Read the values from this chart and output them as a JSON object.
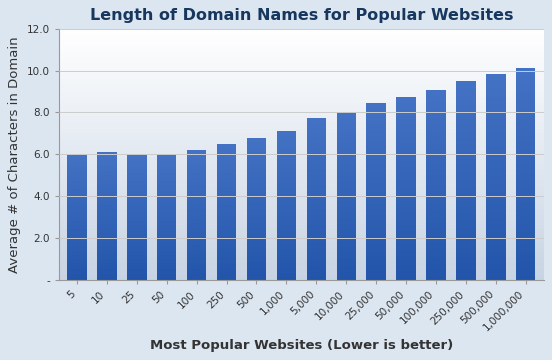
{
  "title": "Length of Domain Names for Popular Websites",
  "xlabel": "Most Popular Websites (Lower is better)",
  "ylabel": "Average # of Characters in Domain",
  "categories": [
    "5",
    "10",
    "25",
    "50",
    "100",
    "250",
    "500",
    "1,000",
    "5,000",
    "10,000",
    "25,000",
    "50,000",
    "100,000",
    "250,000",
    "500,000",
    "1,000,000"
  ],
  "values": [
    6.03,
    6.12,
    6.02,
    6.02,
    6.23,
    6.5,
    6.8,
    7.1,
    7.75,
    8.02,
    8.44,
    8.72,
    9.08,
    9.48,
    9.82,
    10.1
  ],
  "ylim": [
    0,
    12.0
  ],
  "yticks": [
    0,
    2.0,
    4.0,
    6.0,
    8.0,
    10.0,
    12.0
  ],
  "ytick_labels": [
    "-",
    "2.0",
    "4.0",
    "6.0",
    "8.0",
    "10.0",
    "12.0"
  ],
  "bar_color": "#4472C4",
  "bar_color_dark": "#2255AA",
  "background_color": "#DCE6F1",
  "plot_bg_top": "#FFFFFF",
  "plot_bg_bottom": "#C8D4E4",
  "title_color": "#17375E",
  "axis_label_color": "#333333",
  "tick_color": "#333333",
  "title_fontsize": 11.5,
  "label_fontsize": 9.5,
  "tick_fontsize": 7.5,
  "grid_color": "#CCCCCC"
}
